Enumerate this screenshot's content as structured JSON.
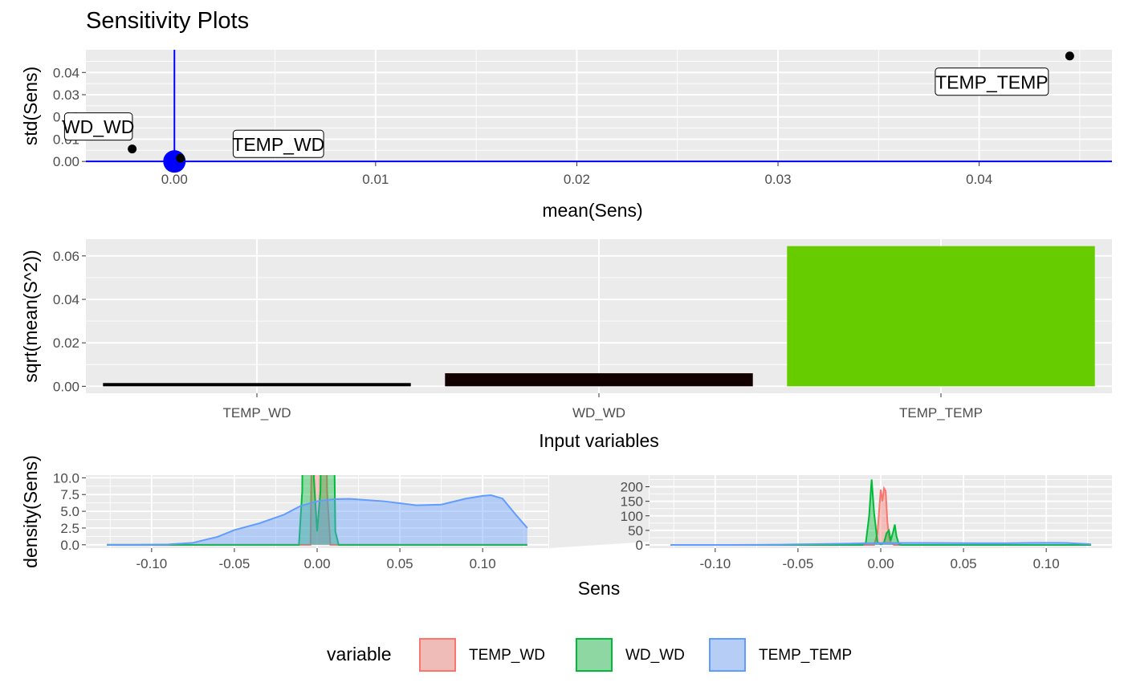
{
  "title": "Sensitivity Plots",
  "colors": {
    "panel_bg": "#ebebeb",
    "grid": "#ffffff",
    "ref_line": "#0000ff",
    "temp_wd": "#f8766d",
    "wd_wd": "#00ba38",
    "temp_temp": "#619cff",
    "bar_temp_wd": "#000000",
    "bar_wd_wd": "#120000",
    "bar_temp_temp": "#66cc00"
  },
  "chart_data": [
    {
      "type": "scatter",
      "xlabel": "mean(Sens)",
      "ylabel": "std(Sens)",
      "xlim": [
        -0.0044,
        0.0466
      ],
      "ylim": [
        -0.0003,
        0.0502
      ],
      "xticks": [
        0.0,
        0.01,
        0.02,
        0.03,
        0.04
      ],
      "xtick_labels": [
        "0.00",
        "0.01",
        "0.02",
        "0.03",
        "0.04"
      ],
      "yticks": [
        0.0,
        0.01,
        0.02,
        0.03,
        0.04
      ],
      "ytick_labels": [
        "0.00",
        "0.01",
        "0.02",
        "0.03",
        "0.04"
      ],
      "reference_lines": {
        "x": 0,
        "y": 0
      },
      "origin_marker": {
        "x": 0,
        "y": 0
      },
      "points": [
        {
          "label": "WD_WD",
          "x": -0.0021,
          "y": 0.0056
        },
        {
          "label": "TEMP_WD",
          "x": 0.0003,
          "y": 0.0014
        },
        {
          "label": "TEMP_TEMP",
          "x": 0.0445,
          "y": 0.0474
        }
      ]
    },
    {
      "type": "bar",
      "xlabel": "Input variables",
      "ylabel": "sqrt(mean(S^2))",
      "categories": [
        "TEMP_WD",
        "WD_WD",
        "TEMP_TEMP"
      ],
      "values": [
        0.0015,
        0.006,
        0.0645
      ],
      "ylim": [
        -0.0032,
        0.0677
      ],
      "yticks": [
        0.0,
        0.02,
        0.04,
        0.06
      ],
      "ytick_labels": [
        "0.00",
        "0.02",
        "0.04",
        "0.06"
      ]
    },
    {
      "type": "area",
      "xlabel": "Sens",
      "ylabel": "density(Sens)",
      "legend_title": "variable",
      "legend_position": "bottom",
      "x_range": [
        -0.127,
        0.127
      ],
      "xticks": [
        -0.1,
        -0.05,
        0.0,
        0.05,
        0.1
      ],
      "xtick_labels": [
        "-0.10",
        "-0.05",
        "0.00",
        "0.05",
        "0.10"
      ],
      "zoom_panel": {
        "xlim": [
          -0.1397,
          0.1397
        ],
        "ylim": [
          -0.5,
          10.4
        ],
        "yticks": [
          0.0,
          2.5,
          5.0,
          7.5,
          10.0
        ],
        "ytick_labels": [
          "0.0",
          "2.5",
          "5.0",
          "7.5",
          "10.0"
        ]
      },
      "full_panel": {
        "xlim": [
          -0.1397,
          0.1397
        ],
        "ylim": [
          -11,
          240
        ],
        "yticks": [
          0,
          50,
          100,
          150,
          200
        ],
        "ytick_labels": [
          "0",
          "50",
          "100",
          "150",
          "200"
        ]
      },
      "series": [
        {
          "name": "TEMP_WD",
          "x": [
            -0.127,
            -0.004,
            -0.002,
            0.0,
            0.001,
            0.002,
            0.003,
            0.004,
            0.005,
            0.006,
            0.008,
            0.127
          ],
          "y": [
            0,
            0,
            40,
            190,
            150,
            195,
            185,
            80,
            30,
            8,
            0,
            0
          ]
        },
        {
          "name": "WD_WD",
          "x": [
            -0.127,
            -0.011,
            -0.009,
            -0.007,
            -0.0055,
            -0.004,
            -0.002,
            0.0,
            0.002,
            0.0035,
            0.005,
            0.006,
            0.0075,
            0.0085,
            0.0095,
            0.011,
            0.013,
            0.127
          ],
          "y": [
            0,
            0,
            8,
            100,
            225,
            110,
            10,
            2,
            8,
            40,
            50,
            15,
            45,
            70,
            30,
            2,
            0,
            0
          ]
        },
        {
          "name": "TEMP_TEMP",
          "x": [
            -0.127,
            -0.11,
            -0.09,
            -0.075,
            -0.06,
            -0.05,
            -0.035,
            -0.02,
            -0.01,
            0.0,
            0.01,
            0.02,
            0.04,
            0.06,
            0.075,
            0.09,
            0.1,
            0.105,
            0.112,
            0.12,
            0.127
          ],
          "y": [
            0,
            0,
            0.05,
            0.3,
            1.2,
            2.2,
            3.2,
            4.5,
            5.8,
            6.5,
            6.8,
            6.85,
            6.5,
            5.9,
            6.0,
            6.9,
            7.3,
            7.4,
            6.9,
            4.5,
            2.5
          ]
        }
      ]
    }
  ]
}
